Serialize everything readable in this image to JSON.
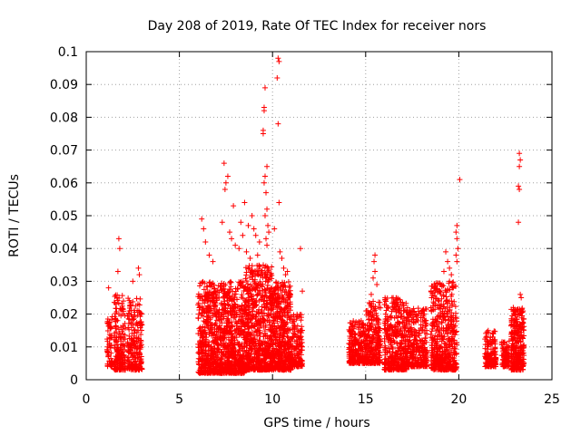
{
  "chart_data": {
    "type": "scatter",
    "title": "Day 208 of 2019, Rate Of TEC Index for receiver nors",
    "xlabel": "GPS time / hours",
    "ylabel": "ROTI / TECUs",
    "xlim": [
      0,
      25
    ],
    "ylim": [
      0,
      0.1
    ],
    "x_ticks": [
      "0",
      "5",
      "10",
      "15",
      "20",
      "25"
    ],
    "y_ticks": [
      "0",
      "0.01",
      "0.02",
      "0.03",
      "0.04",
      "0.05",
      "0.06",
      "0.07",
      "0.08",
      "0.09",
      "0.1"
    ],
    "grid": true,
    "marker": "plus",
    "color": "#ff0000",
    "clusters": [
      {
        "x_range": [
          1.1,
          1.4
        ],
        "y_range": [
          0.004,
          0.02
        ],
        "count": 60
      },
      {
        "x_range": [
          1.5,
          2.1
        ],
        "y_range": [
          0.003,
          0.026
        ],
        "count": 200
      },
      {
        "x_range": [
          2.2,
          3.0
        ],
        "y_range": [
          0.003,
          0.025
        ],
        "count": 220
      },
      {
        "x_range": [
          6.0,
          6.9
        ],
        "y_range": [
          0.002,
          0.03
        ],
        "count": 400
      },
      {
        "x_range": [
          6.9,
          8.5
        ],
        "y_range": [
          0.002,
          0.03
        ],
        "count": 700
      },
      {
        "x_range": [
          8.5,
          10.0
        ],
        "y_range": [
          0.003,
          0.035
        ],
        "count": 700
      },
      {
        "x_range": [
          10.0,
          11.0
        ],
        "y_range": [
          0.003,
          0.03
        ],
        "count": 450
      },
      {
        "x_range": [
          11.0,
          11.6
        ],
        "y_range": [
          0.004,
          0.02
        ],
        "count": 150
      },
      {
        "x_range": [
          14.1,
          15.0
        ],
        "y_range": [
          0.005,
          0.018
        ],
        "count": 250
      },
      {
        "x_range": [
          15.0,
          15.8
        ],
        "y_range": [
          0.005,
          0.024
        ],
        "count": 260
      },
      {
        "x_range": [
          16.0,
          17.2
        ],
        "y_range": [
          0.003,
          0.025
        ],
        "count": 380
      },
      {
        "x_range": [
          17.2,
          18.3
        ],
        "y_range": [
          0.004,
          0.022
        ],
        "count": 300
      },
      {
        "x_range": [
          18.5,
          19.9
        ],
        "y_range": [
          0.003,
          0.03
        ],
        "count": 500
      },
      {
        "x_range": [
          21.4,
          22.0
        ],
        "y_range": [
          0.004,
          0.015
        ],
        "count": 150
      },
      {
        "x_range": [
          22.3,
          22.7
        ],
        "y_range": [
          0.004,
          0.012
        ],
        "count": 90
      },
      {
        "x_range": [
          22.8,
          23.5
        ],
        "y_range": [
          0.003,
          0.022
        ],
        "count": 300
      }
    ],
    "outliers": [
      [
        1.2,
        0.028
      ],
      [
        1.75,
        0.043
      ],
      [
        1.8,
        0.04
      ],
      [
        1.7,
        0.033
      ],
      [
        2.5,
        0.03
      ],
      [
        2.8,
        0.034
      ],
      [
        2.85,
        0.032
      ],
      [
        6.2,
        0.049
      ],
      [
        6.3,
        0.046
      ],
      [
        6.4,
        0.042
      ],
      [
        6.6,
        0.038
      ],
      [
        6.8,
        0.036
      ],
      [
        7.4,
        0.066
      ],
      [
        7.5,
        0.06
      ],
      [
        7.45,
        0.058
      ],
      [
        7.6,
        0.062
      ],
      [
        7.3,
        0.048
      ],
      [
        7.7,
        0.045
      ],
      [
        7.8,
        0.043
      ],
      [
        8.0,
        0.041
      ],
      [
        8.2,
        0.04
      ],
      [
        8.4,
        0.044
      ],
      [
        8.6,
        0.039
      ],
      [
        8.8,
        0.037
      ],
      [
        7.9,
        0.053
      ],
      [
        8.3,
        0.048
      ],
      [
        8.5,
        0.054
      ],
      [
        8.7,
        0.047
      ],
      [
        8.9,
        0.05
      ],
      [
        9.0,
        0.046
      ],
      [
        9.1,
        0.044
      ],
      [
        9.2,
        0.038
      ],
      [
        9.3,
        0.042
      ],
      [
        9.55,
        0.083
      ],
      [
        9.55,
        0.082
      ],
      [
        9.5,
        0.076
      ],
      [
        9.5,
        0.075
      ],
      [
        9.6,
        0.089
      ],
      [
        9.7,
        0.065
      ],
      [
        9.6,
        0.062
      ],
      [
        9.55,
        0.06
      ],
      [
        9.65,
        0.057
      ],
      [
        9.7,
        0.052
      ],
      [
        9.6,
        0.05
      ],
      [
        9.75,
        0.047
      ],
      [
        9.8,
        0.045
      ],
      [
        9.65,
        0.043
      ],
      [
        9.7,
        0.041
      ],
      [
        10.3,
        0.098
      ],
      [
        10.35,
        0.097
      ],
      [
        10.25,
        0.092
      ],
      [
        10.3,
        0.078
      ],
      [
        10.35,
        0.054
      ],
      [
        10.1,
        0.046
      ],
      [
        10.4,
        0.039
      ],
      [
        10.5,
        0.037
      ],
      [
        10.6,
        0.034
      ],
      [
        10.7,
        0.032
      ],
      [
        10.8,
        0.033
      ],
      [
        11.5,
        0.04
      ],
      [
        11.6,
        0.027
      ],
      [
        15.5,
        0.038
      ],
      [
        15.45,
        0.036
      ],
      [
        15.5,
        0.033
      ],
      [
        15.4,
        0.031
      ],
      [
        15.6,
        0.029
      ],
      [
        15.3,
        0.026
      ],
      [
        19.3,
        0.039
      ],
      [
        19.4,
        0.036
      ],
      [
        19.5,
        0.034
      ],
      [
        19.6,
        0.032
      ],
      [
        19.5,
        0.03
      ],
      [
        19.2,
        0.033
      ],
      [
        19.9,
        0.047
      ],
      [
        19.85,
        0.045
      ],
      [
        19.9,
        0.043
      ],
      [
        19.95,
        0.04
      ],
      [
        19.85,
        0.038
      ],
      [
        19.9,
        0.036
      ],
      [
        20.05,
        0.061
      ],
      [
        23.25,
        0.069
      ],
      [
        23.3,
        0.067
      ],
      [
        23.25,
        0.065
      ],
      [
        23.2,
        0.059
      ],
      [
        23.25,
        0.058
      ],
      [
        23.2,
        0.048
      ],
      [
        23.3,
        0.026
      ],
      [
        23.35,
        0.025
      ]
    ]
  }
}
